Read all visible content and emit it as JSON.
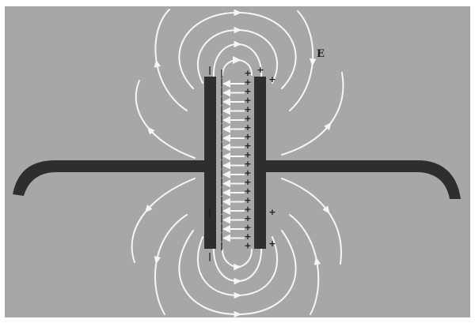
{
  "figure": {
    "field_label": "E",
    "positive_sign": "+",
    "negative_sign": "|"
  },
  "colors": {
    "background": "#a7a7a7",
    "frame": "#ffffff",
    "conductor": "#2e2e2e",
    "field_line": "#f6f6f6",
    "label": "#1c1c1c"
  }
}
